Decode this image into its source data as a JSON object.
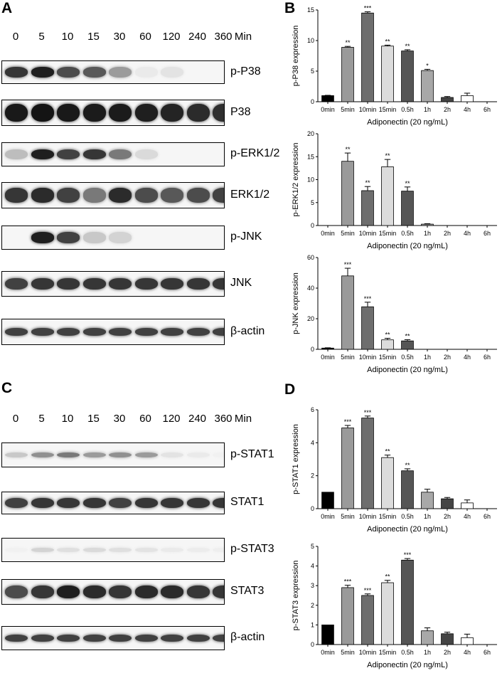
{
  "panels": {
    "A": "A",
    "B": "B",
    "C": "C",
    "D": "D"
  },
  "blots_top": {
    "time_points": [
      "0",
      "5",
      "10",
      "15",
      "30",
      "60",
      "120",
      "240",
      "360"
    ],
    "unit": "Min",
    "rows": [
      {
        "label": "p-P38"
      },
      {
        "label": "P38"
      },
      {
        "label": "p-ERK1/2"
      },
      {
        "label": "ERK1/2"
      },
      {
        "label": "p-JNK"
      },
      {
        "label": "JNK"
      },
      {
        "label": "β-actin"
      }
    ]
  },
  "blots_bottom": {
    "time_points": [
      "0",
      "5",
      "10",
      "15",
      "30",
      "60",
      "120",
      "240",
      "360"
    ],
    "unit": "Min",
    "rows": [
      {
        "label": "p-STAT1"
      },
      {
        "label": "STAT1"
      },
      {
        "label": "p-STAT3"
      },
      {
        "label": "STAT3"
      },
      {
        "label": "β-actin"
      }
    ]
  },
  "chart_data": [
    {
      "type": "bar",
      "categories": [
        "0min",
        "5min",
        "10min",
        "15min",
        "0.5h",
        "1h",
        "2h",
        "4h",
        "6h"
      ],
      "values": [
        1.0,
        8.9,
        14.5,
        9.1,
        8.3,
        5.1,
        0.7,
        1.0,
        0
      ],
      "errors": [
        0.05,
        0.15,
        0.2,
        0.15,
        0.2,
        0.2,
        0.15,
        0.4,
        0
      ],
      "significance": [
        "",
        "**",
        "***",
        "**",
        "**",
        "*",
        "",
        "",
        ""
      ],
      "colors": [
        "#000000",
        "#9a9a9a",
        "#6e6e6e",
        "#dcdcdc",
        "#555555",
        "#a8a8a8",
        "#444444",
        "#ffffff",
        "#ffffff"
      ],
      "xlabel": "Adiponectin (20 ng/mL)",
      "ylabel": "p-P38 expression",
      "ylim": [
        0,
        15
      ],
      "yticks": [
        0,
        5,
        10,
        15
      ]
    },
    {
      "type": "bar",
      "categories": [
        "0min",
        "5min",
        "10min",
        "15min",
        "0.5h",
        "1h",
        "2h",
        "4h",
        "6h"
      ],
      "values": [
        0,
        14.0,
        7.6,
        12.8,
        7.5,
        0.3,
        0,
        0,
        0
      ],
      "errors": [
        0,
        1.8,
        0.9,
        1.6,
        0.9,
        0.1,
        0,
        0,
        0
      ],
      "significance": [
        "",
        "**",
        "**",
        "**",
        "**",
        "",
        "",
        "",
        ""
      ],
      "colors": [
        "#000000",
        "#9a9a9a",
        "#6e6e6e",
        "#dcdcdc",
        "#555555",
        "#a8a8a8",
        "#444444",
        "#ffffff",
        "#ffffff"
      ],
      "xlabel": "Adiponectin (20 ng/mL)",
      "ylabel": "p-ERK1/2 expression",
      "ylim": [
        0,
        20
      ],
      "yticks": [
        0,
        5,
        10,
        15,
        20
      ]
    },
    {
      "type": "bar",
      "categories": [
        "0min",
        "5min",
        "10min",
        "15min",
        "0.5h",
        "1h",
        "2h",
        "4h",
        "6h"
      ],
      "values": [
        0.8,
        48.0,
        27.8,
        6.2,
        5.5,
        0,
        0,
        0,
        0
      ],
      "errors": [
        0.2,
        5.0,
        3.0,
        1.0,
        0.8,
        0,
        0,
        0,
        0
      ],
      "significance": [
        "",
        "***",
        "***",
        "**",
        "**",
        "",
        "",
        "",
        ""
      ],
      "colors": [
        "#000000",
        "#9a9a9a",
        "#6e6e6e",
        "#dcdcdc",
        "#555555",
        "#a8a8a8",
        "#444444",
        "#ffffff",
        "#ffffff"
      ],
      "xlabel": "Adiponectin (20 ng/mL)",
      "ylabel": "p-JNK expression",
      "ylim": [
        0,
        60
      ],
      "yticks": [
        0,
        20,
        40,
        60
      ]
    },
    {
      "type": "bar",
      "categories": [
        "0min",
        "5min",
        "10min",
        "15min",
        "0.5h",
        "1h",
        "2h",
        "4h",
        "6h"
      ],
      "values": [
        1.0,
        4.9,
        5.5,
        3.1,
        2.3,
        1.0,
        0.6,
        0.35,
        0
      ],
      "errors": [
        0,
        0.15,
        0.12,
        0.15,
        0.12,
        0.18,
        0.08,
        0.18,
        0
      ],
      "significance": [
        "",
        "***",
        "***",
        "**",
        "**",
        "",
        "",
        "",
        ""
      ],
      "colors": [
        "#000000",
        "#9a9a9a",
        "#6e6e6e",
        "#dcdcdc",
        "#555555",
        "#a8a8a8",
        "#444444",
        "#ffffff",
        "#ffffff"
      ],
      "xlabel": "Adiponectin (20 ng/mL)",
      "ylabel": "p-STAT1 expression",
      "ylim": [
        0,
        6
      ],
      "yticks": [
        0,
        2,
        4,
        6
      ]
    },
    {
      "type": "bar",
      "categories": [
        "0min",
        "5min",
        "10min",
        "15min",
        "0.5h",
        "1h",
        "2h",
        "4h",
        "6h"
      ],
      "values": [
        1.0,
        2.9,
        2.5,
        3.15,
        4.3,
        0.7,
        0.55,
        0.35,
        0
      ],
      "errors": [
        0,
        0.12,
        0.08,
        0.12,
        0.08,
        0.15,
        0.08,
        0.18,
        0
      ],
      "significance": [
        "",
        "***",
        "***",
        "**",
        "***",
        "",
        "",
        "",
        ""
      ],
      "colors": [
        "#000000",
        "#9a9a9a",
        "#6e6e6e",
        "#dcdcdc",
        "#555555",
        "#a8a8a8",
        "#444444",
        "#ffffff",
        "#ffffff"
      ],
      "xlabel": "Adiponectin (20 ng/mL)",
      "ylabel": "p-STAT3 expression",
      "ylim": [
        0,
        5
      ],
      "yticks": [
        0,
        1,
        2,
        3,
        4,
        5
      ]
    }
  ]
}
